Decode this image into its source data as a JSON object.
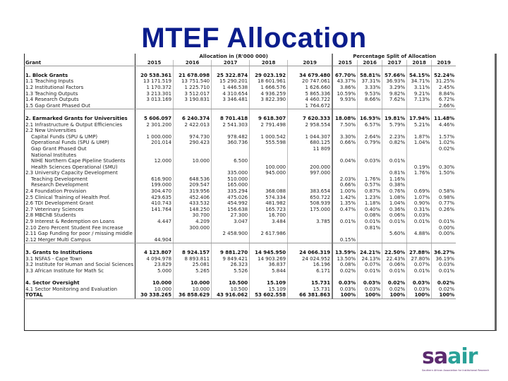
{
  "slide": {
    "title": "MTEF Allocation"
  },
  "table": {
    "group_headers": {
      "grant": "Grant",
      "allocation": "Allocation in (R'000 000)",
      "percentage": "Percentage Split of Allocation"
    },
    "years": [
      "2015",
      "2016",
      "2017",
      "2018",
      "2019"
    ],
    "rows": [
      {
        "label": "1.  Block Grants",
        "bold": true,
        "values": [
          "20 538.361",
          "21 678.098",
          "25 322.874",
          "29 023.192",
          "34 679.480"
        ],
        "pct": [
          "67.70%",
          "58.81%",
          "57.66%",
          "54.15%",
          "52.24%"
        ]
      },
      {
        "label": "1.1 Teaching Inputs",
        "values": [
          "13 171.519",
          "13 751.540",
          "15 290.201",
          "18 601.961",
          "20 747.061"
        ],
        "pct": [
          "43.37%",
          "37.31%",
          "36.93%",
          "34.71%",
          "31.25%"
        ]
      },
      {
        "label": "1.2 Institutional Factors",
        "values": [
          "1 170.372",
          "1 225.710",
          "1 446.538",
          "1 666.576",
          "1 626.660"
        ],
        "pct": [
          "3.86%",
          "3.33%",
          "3.29%",
          "3.11%",
          "2.45%"
        ]
      },
      {
        "label": "1.3 Teaching Outputs",
        "values": [
          "3 213.301",
          "3 512.017",
          "4 310.654",
          "4 936.259",
          "5 865.336"
        ],
        "pct": [
          "10.59%",
          "9.53%",
          "9.82%",
          "9.21%",
          "8.84%"
        ]
      },
      {
        "label": "1.4 Research Outputs",
        "values": [
          "3 013.169",
          "3 190.831",
          "3 346.481",
          "3 822.390",
          "4 460.722"
        ],
        "pct": [
          "9.93%",
          "8.66%",
          "7.62%",
          "7.13%",
          "6.72%"
        ]
      },
      {
        "label": "1.5 Gap Grant Phased Out",
        "line": true,
        "values": [
          "",
          "",
          "",
          "",
          "1 764.672"
        ],
        "pct": [
          "",
          "",
          "",
          "",
          "2.66%"
        ]
      },
      {
        "label": "",
        "values": [
          "",
          "",
          "",
          "",
          ""
        ],
        "pct": [
          "",
          "",
          "",
          "",
          ""
        ]
      },
      {
        "label": "2.  Earmarked Grants for Universities",
        "bold": true,
        "values": [
          "5 606.097",
          "6 240.374",
          "8 701.418",
          "9 618.307",
          "7 620.333"
        ],
        "pct": [
          "18.08%",
          "16.93%",
          "19.81%",
          "17.94%",
          "11.48%"
        ]
      },
      {
        "label": "2.1 Infrastructure & Output Efficiencies",
        "values": [
          "2 301.200",
          "2 422.013",
          "2 541.303",
          "2 791.498",
          "2 958.554"
        ],
        "pct": [
          "7.50%",
          "6.57%",
          "5.79%",
          "5.21%",
          "4.46%"
        ]
      },
      {
        "label": "2.2 New Universities",
        "values": [
          "",
          "",
          "",
          "",
          ""
        ],
        "pct": [
          "",
          "",
          "",
          "",
          ""
        ]
      },
      {
        "label": "Capital Funds (SPU & UMP)",
        "indent": true,
        "values": [
          "1 000.000",
          "974.730",
          "978.482",
          "1 000.542",
          "1 044.307"
        ],
        "pct": [
          "3.30%",
          "2.64%",
          "2.23%",
          "1.87%",
          "1.57%"
        ]
      },
      {
        "label": "Operational Funds (SPU & UMP)",
        "indent": true,
        "values": [
          "201.014",
          "290.423",
          "360.736",
          "555.598",
          "680.125"
        ],
        "pct": [
          "0.66%",
          "0.79%",
          "0.82%",
          "1.04%",
          "1.02%"
        ]
      },
      {
        "label": "Gap Grant Phased Out",
        "indent": true,
        "values": [
          "",
          "",
          "",
          "",
          "11 809"
        ],
        "pct": [
          "",
          "",
          "",
          "",
          "0.02%"
        ]
      },
      {
        "label": "National Institutes",
        "indent": true,
        "values": [
          "",
          "",
          "",
          "",
          ""
        ],
        "pct": [
          "",
          "",
          "",
          "",
          ""
        ]
      },
      {
        "label": "NIHE Northern Cape Pipeline Students",
        "indent": true,
        "values": [
          "12.000",
          "10.000",
          "6.500",
          "",
          ""
        ],
        "pct": [
          "0.04%",
          "0.03%",
          "0.01%",
          "",
          ""
        ]
      },
      {
        "label": "Health Sciences Operational (SMU)",
        "indent": true,
        "values": [
          "",
          "",
          "",
          "100.000",
          "200.000"
        ],
        "pct": [
          "",
          "",
          "",
          "0.19%",
          "0.30%"
        ]
      },
      {
        "label": "2.3 University Capacity Development",
        "values": [
          "",
          "",
          "335.000",
          "945.000",
          "997.000"
        ],
        "pct": [
          "",
          "",
          "0.81%",
          "1.76%",
          "1.50%"
        ]
      },
      {
        "label": "Teaching Development",
        "indent": true,
        "values": [
          "616.900",
          "648.536",
          "510.000",
          "",
          ""
        ],
        "pct": [
          "2.03%",
          "1.76%",
          "1.16%",
          "",
          ""
        ]
      },
      {
        "label": "Research Development",
        "indent": true,
        "values": [
          "199.000",
          "209.547",
          "165.000",
          "",
          ""
        ],
        "pct": [
          "0.66%",
          "0.57%",
          "0.38%",
          "",
          ""
        ]
      },
      {
        "label": "2.4 Foundation Provision",
        "values": [
          "304.470",
          "319.956",
          "335.294",
          "368.088",
          "383.654"
        ],
        "pct": [
          "1.00%",
          "0.87%",
          "0.76%",
          "0.69%",
          "0.58%"
        ]
      },
      {
        "label": "2.5 Clinical Training of Health Prof.",
        "values": [
          "429.635",
          "452.406",
          "475.026",
          "574.334",
          "650.722"
        ],
        "pct": [
          "1.42%",
          "1.23%",
          "1.08%",
          "1.07%",
          "0.98%"
        ]
      },
      {
        "label": "2.6 TDI Development Grant",
        "values": [
          "410.743",
          "433.532",
          "454.992",
          "481.982",
          "508.939"
        ],
        "pct": [
          "1.35%",
          "1.18%",
          "1.04%",
          "0.90%",
          "0.77%"
        ]
      },
      {
        "label": "2.7 Veterinary Sciences",
        "values": [
          "141.764",
          "148.250",
          "156.638",
          "165.723",
          "175.000"
        ],
        "pct": [
          "0.47%",
          "0.40%",
          "0.36%",
          "0.31%",
          "0.26%"
        ]
      },
      {
        "label": "2.8 MBChB Students",
        "values": [
          "",
          "30.700",
          "27.300",
          "16.700",
          ""
        ],
        "pct": [
          "",
          "0.08%",
          "0.06%",
          "0.03%",
          ""
        ]
      },
      {
        "label": "2.9 Interest & Redemption on Loans",
        "values": [
          "4.447",
          "4.209",
          "3.047",
          "3.484",
          "3.785"
        ],
        "pct": [
          "0.01%",
          "0.01%",
          "0.01%",
          "0.01%",
          "0.01%"
        ]
      },
      {
        "label": "2.10 Zero Percent Student Fee Increase",
        "values": [
          "",
          "300.000",
          "",
          "",
          ""
        ],
        "pct": [
          "",
          "0.81%",
          "",
          "",
          "0.00%"
        ]
      },
      {
        "label": "2.11 Gap Funding for poor / missing middle",
        "values": [
          "",
          "",
          "2 458.900",
          "2 617.986",
          ""
        ],
        "pct": [
          "",
          "",
          "5.60%",
          "4.88%",
          "0.00%"
        ]
      },
      {
        "label": "2.12 Merger Multi Campus",
        "line": true,
        "values": [
          "44.904",
          "",
          "",
          "",
          ""
        ],
        "pct": [
          "0.15%",
          "",
          "",
          "",
          ""
        ]
      },
      {
        "label": "",
        "values": [
          "",
          "",
          "",
          "",
          ""
        ],
        "pct": [
          "",
          "",
          "",
          "",
          ""
        ]
      },
      {
        "label": "3. Grants to Institutions",
        "bold": true,
        "values": [
          "4 123.807",
          "8 924.157",
          "9 881.270",
          "14 945.950",
          "24 066.319"
        ],
        "pct": [
          "13.59%",
          "24.21%",
          "22.50%",
          "27.88%",
          "36.27%"
        ]
      },
      {
        "label": "3.1 NSFAS - Cape Town",
        "values": [
          "4 094.978",
          "8 893.811",
          "9 849.421",
          "14 903.269",
          "24 024.952"
        ],
        "pct": [
          "13.50%",
          "24.13%",
          "22.43%",
          "27.80%",
          "36.19%"
        ]
      },
      {
        "label": "3.2 Institute for Human and Social Sciences",
        "values": [
          "23.829",
          "25.081",
          "26.323",
          "36.837",
          "16.196"
        ],
        "pct": [
          "0.08%",
          "0.07%",
          "0.06%",
          "0.07%",
          "0.03%"
        ]
      },
      {
        "label": "3.3 African Institute for Math Sc",
        "values": [
          "5.000",
          "5.265",
          "5.526",
          "5.844",
          "6.171"
        ],
        "pct": [
          "0.02%",
          "0.01%",
          "0.01%",
          "0.01%",
          "0.01%"
        ]
      },
      {
        "label": "",
        "values": [
          "",
          "",
          "",
          "",
          ""
        ],
        "pct": [
          "",
          "",
          "",
          "",
          ""
        ]
      },
      {
        "label": "4. Sector Oversight",
        "bold": true,
        "values": [
          "10.000",
          "10.000",
          "10.500",
          "15.109",
          "15.731"
        ],
        "pct": [
          "0.03%",
          "0.03%",
          "0.02%",
          "0.03%",
          "0.02%"
        ]
      },
      {
        "label": "4.1 Sector Monitoring and Evaluation",
        "values": [
          "10.000",
          "10.000",
          "10.500",
          "15.109",
          "15.731"
        ],
        "pct": [
          "0.03%",
          "0.03%",
          "0.02%",
          "0.03%",
          "0.02%"
        ]
      },
      {
        "label": "TOTAL",
        "bold": true,
        "line": true,
        "values": [
          "30 338.265",
          "36 858.629",
          "43 916.062",
          "53 602.558",
          "66 381.863"
        ],
        "pct": [
          "100%",
          "100%",
          "100%",
          "100%",
          "100%"
        ]
      }
    ]
  },
  "logo": {
    "part1": "sa",
    "part2": "air",
    "tagline": "Southern African Association for Institutional Research",
    "colors": {
      "purple": "#5b2a6e",
      "teal": "#2aa198"
    }
  }
}
